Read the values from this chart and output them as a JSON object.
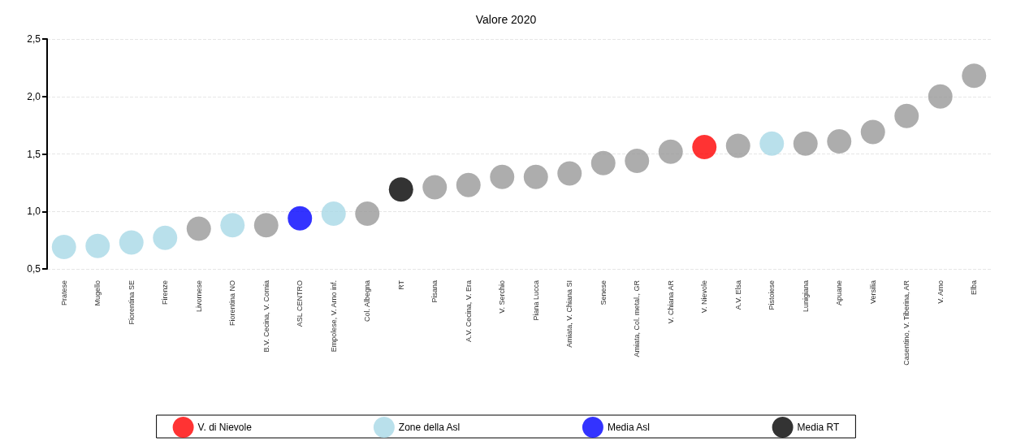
{
  "chart_data": {
    "type": "scatter",
    "title": "Valore 2020",
    "categories": [
      "Pratese",
      "Mugello",
      "Fiorentina SE",
      "Firenze",
      "Livornese",
      "Fiorentina NO",
      "B.V. Cecina, V. Cornia",
      "ASL CENTRO",
      "Empolese, V. Arno inf.",
      "Col. Albegna",
      "RT",
      "Pisana",
      "A.V. Cecina, V. Era",
      "V. Serchio",
      "Piana Lucca",
      "Amiata, V. Chiana SI",
      "Senese",
      "Amiata, Col. metal., GR",
      "V. Chiana AR",
      "V. Nievole",
      "A.V. Elsa",
      "Pistoiese",
      "Lunigiana",
      "Apuane",
      "Versilia",
      "Casentino, V. Tiberina, AR",
      "V. Arno",
      "Elba"
    ],
    "series": [
      {
        "color": "#999999",
        "values": [
          null,
          null,
          null,
          null,
          0.85,
          null,
          0.88,
          null,
          null,
          0.98,
          null,
          1.21,
          1.23,
          1.3,
          1.3,
          1.33,
          1.42,
          1.44,
          1.52,
          null,
          1.57,
          null,
          1.59,
          1.61,
          1.69,
          1.83,
          2.0,
          2.18
        ]
      },
      {
        "name": "V. di Nievole",
        "color": "#ff0000",
        "values": [
          null,
          null,
          null,
          null,
          null,
          null,
          null,
          null,
          null,
          null,
          null,
          null,
          null,
          null,
          null,
          null,
          null,
          null,
          null,
          1.56,
          null,
          null,
          null,
          null,
          null,
          null,
          null,
          null
        ]
      },
      {
        "name": "Zone della Asl",
        "color": "#a8d8e6",
        "values": [
          0.69,
          0.7,
          0.73,
          0.77,
          null,
          0.88,
          null,
          null,
          0.98,
          null,
          null,
          null,
          null,
          null,
          null,
          null,
          null,
          null,
          null,
          null,
          null,
          1.59,
          null,
          null,
          null,
          null,
          null,
          null
        ]
      },
      {
        "name": "Media Asl",
        "color": "#0000ff",
        "values": [
          null,
          null,
          null,
          null,
          null,
          null,
          null,
          0.94,
          null,
          null,
          null,
          null,
          null,
          null,
          null,
          null,
          null,
          null,
          null,
          null,
          null,
          null,
          null,
          null,
          null,
          null,
          null,
          null
        ]
      },
      {
        "name": "Media RT",
        "color": "#000000",
        "values": [
          null,
          null,
          null,
          null,
          null,
          null,
          null,
          null,
          null,
          null,
          1.19,
          null,
          null,
          null,
          null,
          null,
          null,
          null,
          null,
          null,
          null,
          null,
          null,
          null,
          null,
          null,
          null,
          null
        ]
      }
    ],
    "ylim": [
      0.5,
      2.5
    ],
    "yticks": [
      {
        "value": 0.5,
        "label": "0,5"
      },
      {
        "value": 1.0,
        "label": "1,0"
      },
      {
        "value": 1.5,
        "label": "1,5"
      },
      {
        "value": 2.0,
        "label": "2,0"
      },
      {
        "value": 2.5,
        "label": "2,5"
      }
    ],
    "grid": "y",
    "legend": "bottom",
    "marker": "circle"
  }
}
